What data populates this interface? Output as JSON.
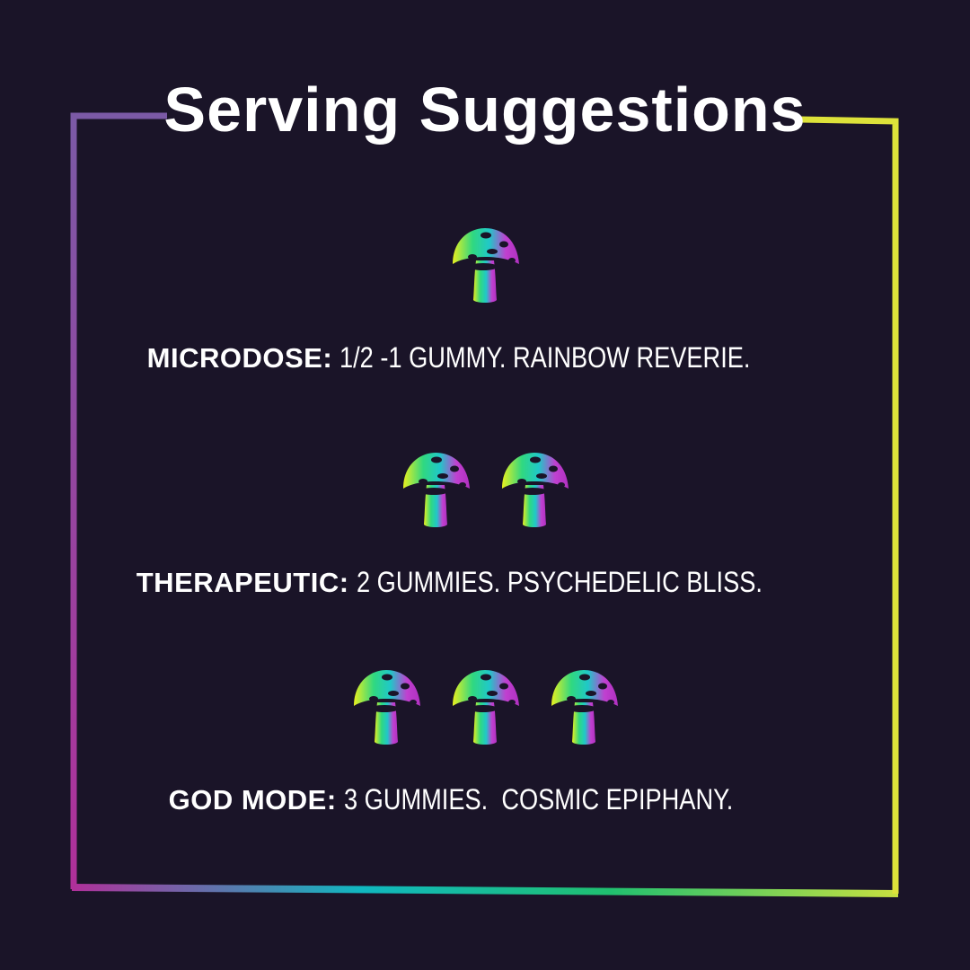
{
  "title": "Serving Suggestions",
  "colors": {
    "background": "#1a1428",
    "frame_start": "#7b5aa6",
    "frame_magenta": "#b0309a",
    "frame_cyan": "#10b8c0",
    "frame_green": "#20c070",
    "frame_end": "#e0e030"
  },
  "icon": "mushroom-icon",
  "suggestions": [
    {
      "label": "MICRODOSE:",
      "text": "1/2 -1 GUMMY. RAINBOW REVERIE.",
      "count": 1
    },
    {
      "label": "THERAPEUTIC:",
      "text": "2 GUMMIES. PSYCHEDELIC BLISS.",
      "count": 2
    },
    {
      "label": "GOD MODE:",
      "text": "3 GUMMIES.  COSMIC EPIPHANY.",
      "count": 3
    }
  ]
}
